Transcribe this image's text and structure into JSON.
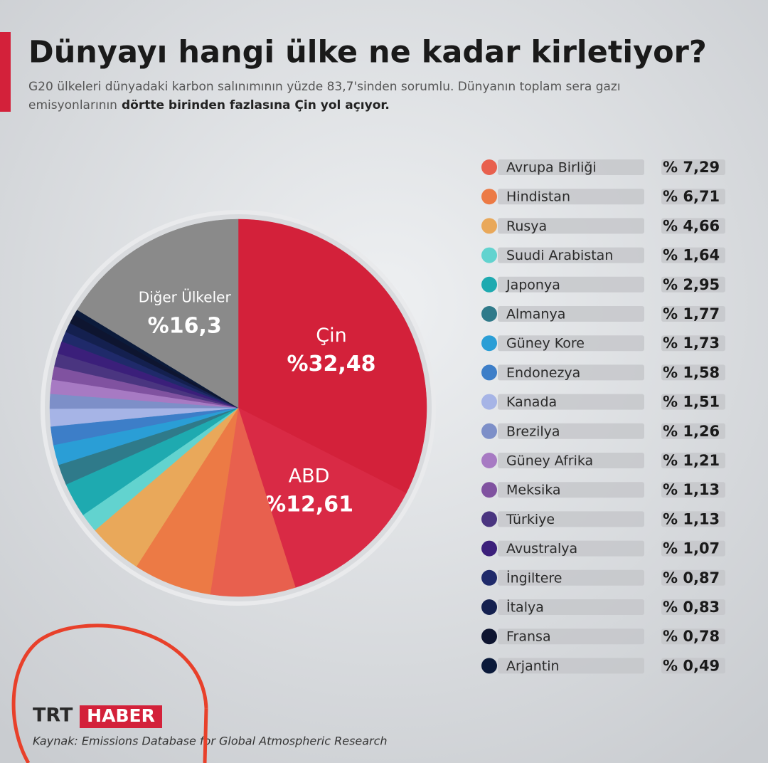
{
  "chart_data": {
    "type": "pie",
    "title": "Dünyayı hangi ülke ne kadar kirletiyor?",
    "subtitle": [
      "G20 ülkeleri dünyadaki karbon salınımının yüzde 83,7'sinden sorumlu. Dünyanın toplam sera gazı",
      "emisyonlarının"
    ],
    "subtitle_bold": "dörtte birinden fazlasına Çin yol açıyor.",
    "categories": [
      "Çin",
      "ABD",
      "Avrupa Birliği",
      "Hindistan",
      "Rusya",
      "Suudi Arabistan",
      "Japonya",
      "Almanya",
      "Güney Kore",
      "Endonezya",
      "Kanada",
      "Brezilya",
      "Güney Afrika",
      "Meksika",
      "Türkiye",
      "Avustralya",
      "İngiltere",
      "İtalya",
      "Fransa",
      "Arjantin",
      "Diğer Ülkeler"
    ],
    "values": [
      32.48,
      12.61,
      7.29,
      6.71,
      4.66,
      1.64,
      2.95,
      1.77,
      1.73,
      1.58,
      1.51,
      1.26,
      1.21,
      1.13,
      1.13,
      1.07,
      0.87,
      0.83,
      0.78,
      0.49,
      16.3
    ],
    "value_labels": [
      "%32,48",
      "%12,61",
      "% 7,29",
      "% 6,71",
      "% 4,66",
      "% 1,64",
      "% 2,95",
      "% 1,77",
      "% 1,73",
      "% 1,58",
      "% 1,51",
      "% 1,26",
      "% 1,21",
      "% 1,13",
      "% 1,13",
      "% 1,07",
      "% 0,87",
      "% 0,83",
      "% 0,78",
      "% 0,49",
      "%16,3"
    ],
    "colors": [
      "#d3213a",
      "#d92a45",
      "#e8604e",
      "#ec7a45",
      "#e9a85a",
      "#62d3cf",
      "#1eaab0",
      "#2f7a8a",
      "#2a9ed6",
      "#3d7ec8",
      "#a6b4e6",
      "#7d8fc8",
      "#a77ac3",
      "#8052a0",
      "#4a3580",
      "#3b1f7a",
      "#1f2a6a",
      "#14204f",
      "#0e1530",
      "#0b1a3a",
      "#8a8a8a"
    ],
    "logo": {
      "left": "TRT",
      "right": "HABER"
    },
    "source": "Kaynak: Emissions Database for Global Atmospheric Research"
  }
}
